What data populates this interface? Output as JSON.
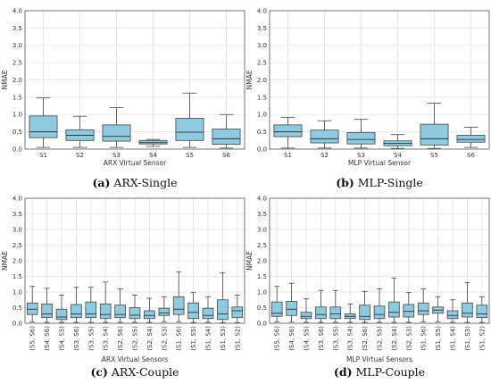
{
  "chart_data": [
    {
      "type": "box",
      "caption_letter": "(a)",
      "caption_text": " ARX-Single",
      "xlabel": "ARX Virtual Sensor",
      "ylabel": "NMAE",
      "ylim": [
        0,
        4.0
      ],
      "yticks": [
        "0.0",
        "0.5",
        "1.0",
        "1.5",
        "2.0",
        "2.5",
        "3.0",
        "3.5",
        "4.0"
      ],
      "box_color": "#8ecae0",
      "grid": true,
      "rotated_ticks": false,
      "categories": [
        "S1",
        "S2",
        "S3",
        "S4",
        "S5",
        "S6"
      ],
      "boxes": [
        {
          "whislo": 0.05,
          "q1": 0.33,
          "med": 0.5,
          "q3": 0.96,
          "whishi": 1.48
        },
        {
          "whislo": 0.05,
          "q1": 0.25,
          "med": 0.4,
          "q3": 0.56,
          "whishi": 0.95
        },
        {
          "whislo": 0.05,
          "q1": 0.23,
          "med": 0.37,
          "q3": 0.7,
          "whishi": 1.2
        },
        {
          "whislo": 0.08,
          "q1": 0.15,
          "med": 0.19,
          "q3": 0.25,
          "whishi": 0.28
        },
        {
          "whislo": 0.05,
          "q1": 0.25,
          "med": 0.49,
          "q3": 0.89,
          "whishi": 1.62
        },
        {
          "whislo": 0.03,
          "q1": 0.14,
          "med": 0.3,
          "q3": 0.58,
          "whishi": 1.0
        }
      ]
    },
    {
      "type": "box",
      "caption_letter": "(b)",
      "caption_text": " MLP-Single",
      "xlabel": "MLP Virtual Sensor",
      "ylabel": "NMAE",
      "ylim": [
        0,
        4.0
      ],
      "yticks": [
        "0.0",
        "0.5",
        "1.0",
        "1.5",
        "2.0",
        "2.5",
        "3.0",
        "3.5",
        "4.0"
      ],
      "box_color": "#8ecae0",
      "grid": true,
      "rotated_ticks": false,
      "categories": [
        "S1",
        "S2",
        "S3",
        "S4",
        "S5",
        "S6"
      ],
      "boxes": [
        {
          "whislo": 0.03,
          "q1": 0.36,
          "med": 0.5,
          "q3": 0.7,
          "whishi": 0.92
        },
        {
          "whislo": 0.03,
          "q1": 0.18,
          "med": 0.3,
          "q3": 0.55,
          "whishi": 0.82
        },
        {
          "whislo": 0.03,
          "q1": 0.15,
          "med": 0.28,
          "q3": 0.48,
          "whishi": 0.86
        },
        {
          "whislo": 0.02,
          "q1": 0.1,
          "med": 0.17,
          "q3": 0.24,
          "whishi": 0.42
        },
        {
          "whislo": 0.02,
          "q1": 0.12,
          "med": 0.3,
          "q3": 0.72,
          "whishi": 1.33
        },
        {
          "whislo": 0.05,
          "q1": 0.2,
          "med": 0.28,
          "q3": 0.4,
          "whishi": 0.63
        }
      ]
    },
    {
      "type": "box",
      "caption_letter": "(c)",
      "caption_text": " ARX-Couple",
      "xlabel": "ARX Virtual Sensors",
      "ylabel": "NMAE",
      "ylim": [
        0,
        4.0
      ],
      "yticks": [
        "0.0",
        "0.5",
        "1.0",
        "1.5",
        "2.0",
        "2.5",
        "3.0",
        "3.5",
        "4.0"
      ],
      "box_color": "#8ecae0",
      "grid": true,
      "rotated_ticks": true,
      "categories": [
        "(S5, S6)",
        "(S4, S6)",
        "(S4, S5)",
        "(S3, S6)",
        "(S3, S5)",
        "(S3, S4)",
        "(S2, S6)",
        "(S2, S5)",
        "(S2, S4)",
        "(S2, S3)",
        "(S1, S6)",
        "(S1, S5)",
        "(S1, S4)",
        "(S1, S3)",
        "(S1, S2)"
      ],
      "boxes": [
        {
          "whislo": 0.05,
          "q1": 0.28,
          "med": 0.45,
          "q3": 0.65,
          "whishi": 1.18
        },
        {
          "whislo": 0.03,
          "q1": 0.18,
          "med": 0.3,
          "q3": 0.62,
          "whishi": 1.12
        },
        {
          "whislo": 0.03,
          "q1": 0.12,
          "med": 0.2,
          "q3": 0.45,
          "whishi": 0.9
        },
        {
          "whislo": 0.03,
          "q1": 0.18,
          "med": 0.3,
          "q3": 0.6,
          "whishi": 1.15
        },
        {
          "whislo": 0.03,
          "q1": 0.18,
          "med": 0.3,
          "q3": 0.68,
          "whishi": 1.15
        },
        {
          "whislo": 0.03,
          "q1": 0.15,
          "med": 0.28,
          "q3": 0.62,
          "whishi": 1.32
        },
        {
          "whislo": 0.03,
          "q1": 0.18,
          "med": 0.28,
          "q3": 0.58,
          "whishi": 1.1
        },
        {
          "whislo": 0.03,
          "q1": 0.15,
          "med": 0.26,
          "q3": 0.5,
          "whishi": 0.9
        },
        {
          "whislo": 0.03,
          "q1": 0.15,
          "med": 0.25,
          "q3": 0.4,
          "whishi": 0.8
        },
        {
          "whislo": 0.05,
          "q1": 0.25,
          "med": 0.33,
          "q3": 0.48,
          "whishi": 0.85
        },
        {
          "whislo": 0.05,
          "q1": 0.28,
          "med": 0.45,
          "q3": 0.85,
          "whishi": 1.65
        },
        {
          "whislo": 0.03,
          "q1": 0.15,
          "med": 0.35,
          "q3": 0.65,
          "whishi": 0.98
        },
        {
          "whislo": 0.03,
          "q1": 0.15,
          "med": 0.25,
          "q3": 0.48,
          "whishi": 0.85
        },
        {
          "whislo": 0.02,
          "q1": 0.12,
          "med": 0.3,
          "q3": 0.75,
          "whishi": 1.62
        },
        {
          "whislo": 0.02,
          "q1": 0.18,
          "med": 0.4,
          "q3": 0.52,
          "whishi": 0.9
        }
      ]
    },
    {
      "type": "box",
      "caption_letter": "(d)",
      "caption_text": " MLP-Couple",
      "xlabel": "MLP Virtual Sensors",
      "ylabel": "NMAE",
      "ylim": [
        0,
        4.0
      ],
      "yticks": [
        "0.0",
        "0.5",
        "1.0",
        "1.5",
        "2.0",
        "2.5",
        "3.0",
        "3.5",
        "4.0"
      ],
      "box_color": "#8ecae0",
      "grid": true,
      "rotated_ticks": true,
      "categories": [
        "(S5, S6)",
        "(S4, S6)",
        "(S4, S5)",
        "(S3, S6)",
        "(S3, S5)",
        "(S3, S4)",
        "(S2, S6)",
        "(S2, S5)",
        "(S2, S4)",
        "(S2, S3)",
        "(S1, S6)",
        "(S1, S5)",
        "(S1, S4)",
        "(S1, S3)",
        "(S1, S2)"
      ],
      "boxes": [
        {
          "whislo": 0.05,
          "q1": 0.22,
          "med": 0.32,
          "q3": 0.68,
          "whishi": 1.18
        },
        {
          "whislo": 0.05,
          "q1": 0.25,
          "med": 0.45,
          "q3": 0.7,
          "whishi": 1.28
        },
        {
          "whislo": 0.03,
          "q1": 0.15,
          "med": 0.22,
          "q3": 0.35,
          "whishi": 0.78
        },
        {
          "whislo": 0.03,
          "q1": 0.15,
          "med": 0.28,
          "q3": 0.52,
          "whishi": 1.05
        },
        {
          "whislo": 0.03,
          "q1": 0.15,
          "med": 0.3,
          "q3": 0.52,
          "whishi": 1.05
        },
        {
          "whislo": 0.03,
          "q1": 0.15,
          "med": 0.22,
          "q3": 0.3,
          "whishi": 0.62
        },
        {
          "whislo": 0.03,
          "q1": 0.12,
          "med": 0.22,
          "q3": 0.58,
          "whishi": 1.02
        },
        {
          "whislo": 0.03,
          "q1": 0.15,
          "med": 0.28,
          "q3": 0.55,
          "whishi": 1.1
        },
        {
          "whislo": 0.03,
          "q1": 0.2,
          "med": 0.35,
          "q3": 0.68,
          "whishi": 1.45
        },
        {
          "whislo": 0.03,
          "q1": 0.2,
          "med": 0.38,
          "q3": 0.6,
          "whishi": 0.98
        },
        {
          "whislo": 0.05,
          "q1": 0.28,
          "med": 0.4,
          "q3": 0.65,
          "whishi": 1.1
        },
        {
          "whislo": 0.05,
          "q1": 0.32,
          "med": 0.42,
          "q3": 0.52,
          "whishi": 0.85
        },
        {
          "whislo": 0.03,
          "q1": 0.15,
          "med": 0.25,
          "q3": 0.4,
          "whishi": 0.75
        },
        {
          "whislo": 0.03,
          "q1": 0.2,
          "med": 0.32,
          "q3": 0.65,
          "whishi": 1.3
        },
        {
          "whislo": 0.03,
          "q1": 0.18,
          "med": 0.3,
          "q3": 0.58,
          "whishi": 0.85
        }
      ]
    }
  ]
}
